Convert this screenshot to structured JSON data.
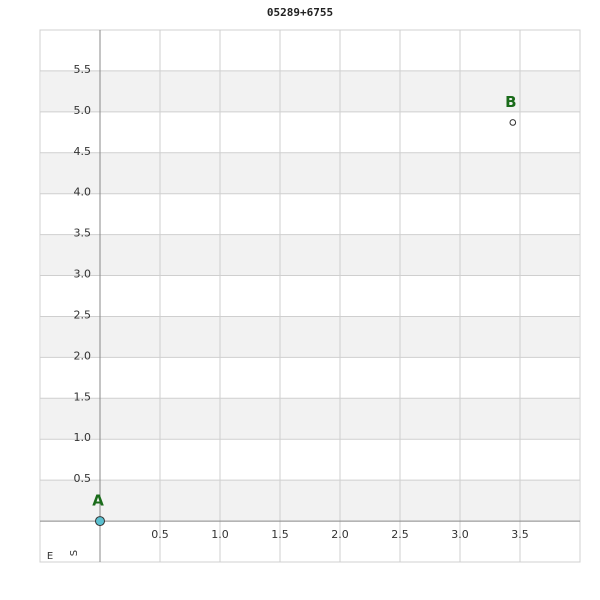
{
  "chart_data": {
    "type": "scatter",
    "title": "05289+6755",
    "series": [
      {
        "name": "A",
        "color": "#5bc0d0",
        "x": [
          0
        ],
        "values": [
          0
        ]
      },
      {
        "name": "B",
        "color": "#ffffff",
        "x": [
          3.44
        ],
        "values": [
          4.87
        ]
      }
    ],
    "xlim": [
      -0.5,
      4.0
    ],
    "ylim": [
      -0.5,
      6.0
    ],
    "xticks": [
      0.5,
      {
        "value": 1,
        "label": "1.0"
      },
      1.5,
      {
        "value": 2,
        "label": "2.0"
      },
      2.5,
      {
        "value": 3,
        "label": "3.0"
      },
      3.5
    ],
    "yticks": [
      0.5,
      {
        "value": 1,
        "label": "1.0"
      },
      1.5,
      {
        "value": 2,
        "label": "2.0"
      },
      2.5,
      {
        "value": 3,
        "label": "3.0"
      },
      3.5,
      {
        "value": 4,
        "label": "4.0"
      },
      4.5,
      {
        "value": 5,
        "label": "5.0"
      },
      5.5
    ],
    "direction_labels": {
      "x": "E",
      "y": "S"
    },
    "grid": true
  }
}
